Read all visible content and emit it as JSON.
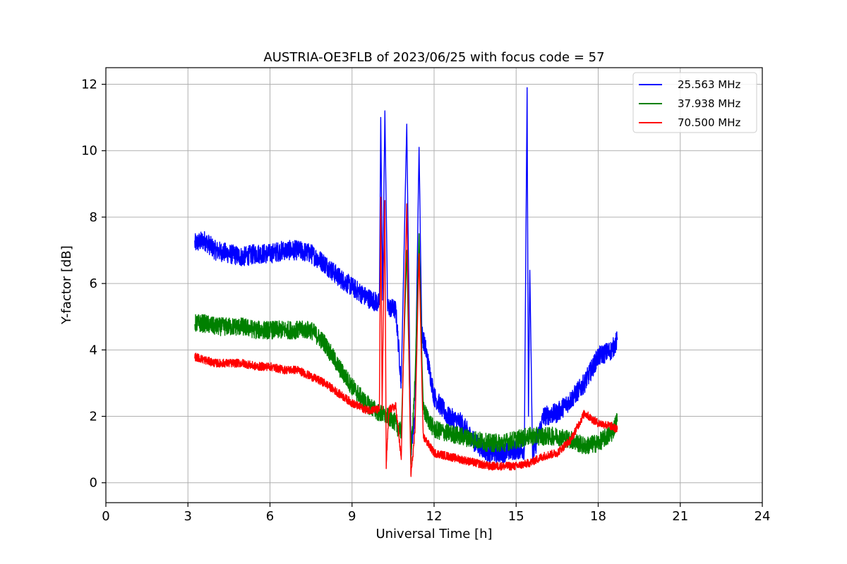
{
  "chart_data": {
    "type": "line",
    "title": "AUSTRIA-OE3FLB of 2023/06/25 with focus code = 57",
    "xlabel": "Universal Time [h]",
    "ylabel": "Y-factor [dB]",
    "xlim": [
      0,
      24
    ],
    "ylim": [
      -0.6,
      12.5
    ],
    "xticks": [
      0,
      3,
      6,
      9,
      12,
      15,
      18,
      21,
      24
    ],
    "yticks": [
      0,
      2,
      4,
      6,
      8,
      10,
      12
    ],
    "grid": true,
    "legend_position": "top-right",
    "series": [
      {
        "name": "25.563 MHz",
        "color": "#0000ff",
        "noise": 0.6,
        "points": [
          [
            3.25,
            7.2
          ],
          [
            3.6,
            7.3
          ],
          [
            4.0,
            7.0
          ],
          [
            4.5,
            6.9
          ],
          [
            5.0,
            6.8
          ],
          [
            5.5,
            6.9
          ],
          [
            6.0,
            6.9
          ],
          [
            6.5,
            7.0
          ],
          [
            7.0,
            7.0
          ],
          [
            7.5,
            6.9
          ],
          [
            8.0,
            6.6
          ],
          [
            8.5,
            6.2
          ],
          [
            9.0,
            5.9
          ],
          [
            9.5,
            5.6
          ],
          [
            10.0,
            5.4
          ],
          [
            10.05,
            11.0
          ],
          [
            10.12,
            5.5
          ],
          [
            10.2,
            11.2
          ],
          [
            10.3,
            5.3
          ],
          [
            10.6,
            5.2
          ],
          [
            10.8,
            3.0
          ],
          [
            11.0,
            10.8
          ],
          [
            11.15,
            1.0
          ],
          [
            11.3,
            2.0
          ],
          [
            11.45,
            10.1
          ],
          [
            11.55,
            4.5
          ],
          [
            11.7,
            4.0
          ],
          [
            12.0,
            2.6
          ],
          [
            12.5,
            2.0
          ],
          [
            13.0,
            1.8
          ],
          [
            13.5,
            1.2
          ],
          [
            14.0,
            0.9
          ],
          [
            14.5,
            0.9
          ],
          [
            15.0,
            1.0
          ],
          [
            15.3,
            1.0
          ],
          [
            15.4,
            11.9
          ],
          [
            15.45,
            2.0
          ],
          [
            15.5,
            6.4
          ],
          [
            15.6,
            0.8
          ],
          [
            16.0,
            2.0
          ],
          [
            16.5,
            2.1
          ],
          [
            17.0,
            2.5
          ],
          [
            17.5,
            3.0
          ],
          [
            18.0,
            3.8
          ],
          [
            18.5,
            4.0
          ],
          [
            18.7,
            4.3
          ]
        ]
      },
      {
        "name": "37.938 MHz",
        "color": "#008000",
        "noise": 0.55,
        "points": [
          [
            3.25,
            4.8
          ],
          [
            3.6,
            4.8
          ],
          [
            4.0,
            4.7
          ],
          [
            4.5,
            4.7
          ],
          [
            5.0,
            4.7
          ],
          [
            5.5,
            4.6
          ],
          [
            6.0,
            4.6
          ],
          [
            6.5,
            4.6
          ],
          [
            7.0,
            4.6
          ],
          [
            7.5,
            4.6
          ],
          [
            8.0,
            4.2
          ],
          [
            8.5,
            3.5
          ],
          [
            9.0,
            2.9
          ],
          [
            9.5,
            2.4
          ],
          [
            10.0,
            2.1
          ],
          [
            10.5,
            1.9
          ],
          [
            10.8,
            1.5
          ],
          [
            11.0,
            7.0
          ],
          [
            11.15,
            0.8
          ],
          [
            11.3,
            3.0
          ],
          [
            11.45,
            7.5
          ],
          [
            11.6,
            2.2
          ],
          [
            12.0,
            1.6
          ],
          [
            12.5,
            1.5
          ],
          [
            13.0,
            1.4
          ],
          [
            13.5,
            1.3
          ],
          [
            14.0,
            1.2
          ],
          [
            14.5,
            1.2
          ],
          [
            15.0,
            1.3
          ],
          [
            15.5,
            1.4
          ],
          [
            16.0,
            1.4
          ],
          [
            16.5,
            1.4
          ],
          [
            17.0,
            1.3
          ],
          [
            17.5,
            1.1
          ],
          [
            18.0,
            1.2
          ],
          [
            18.5,
            1.5
          ],
          [
            18.7,
            1.9
          ]
        ]
      },
      {
        "name": "70.500 MHz",
        "color": "#ff0000",
        "noise": 0.25,
        "points": [
          [
            3.25,
            3.8
          ],
          [
            3.6,
            3.7
          ],
          [
            4.0,
            3.6
          ],
          [
            4.5,
            3.6
          ],
          [
            5.0,
            3.6
          ],
          [
            5.5,
            3.5
          ],
          [
            6.0,
            3.5
          ],
          [
            6.5,
            3.4
          ],
          [
            7.0,
            3.4
          ],
          [
            7.5,
            3.2
          ],
          [
            8.0,
            3.0
          ],
          [
            8.5,
            2.7
          ],
          [
            9.0,
            2.4
          ],
          [
            9.5,
            2.2
          ],
          [
            10.0,
            2.2
          ],
          [
            10.05,
            8.6
          ],
          [
            10.1,
            2.2
          ],
          [
            10.2,
            8.5
          ],
          [
            10.25,
            0.5
          ],
          [
            10.35,
            2.2
          ],
          [
            10.6,
            2.3
          ],
          [
            10.8,
            0.7
          ],
          [
            11.0,
            8.4
          ],
          [
            11.15,
            0.2
          ],
          [
            11.3,
            1.5
          ],
          [
            11.45,
            6.9
          ],
          [
            11.6,
            1.4
          ],
          [
            12.0,
            0.9
          ],
          [
            12.5,
            0.8
          ],
          [
            13.0,
            0.7
          ],
          [
            13.5,
            0.6
          ],
          [
            14.0,
            0.5
          ],
          [
            14.5,
            0.5
          ],
          [
            15.0,
            0.5
          ],
          [
            15.5,
            0.6
          ],
          [
            16.0,
            0.8
          ],
          [
            16.5,
            0.9
          ],
          [
            17.0,
            1.3
          ],
          [
            17.5,
            2.1
          ],
          [
            17.8,
            1.9
          ],
          [
            18.0,
            1.8
          ],
          [
            18.5,
            1.7
          ],
          [
            18.7,
            1.6
          ]
        ]
      }
    ]
  }
}
